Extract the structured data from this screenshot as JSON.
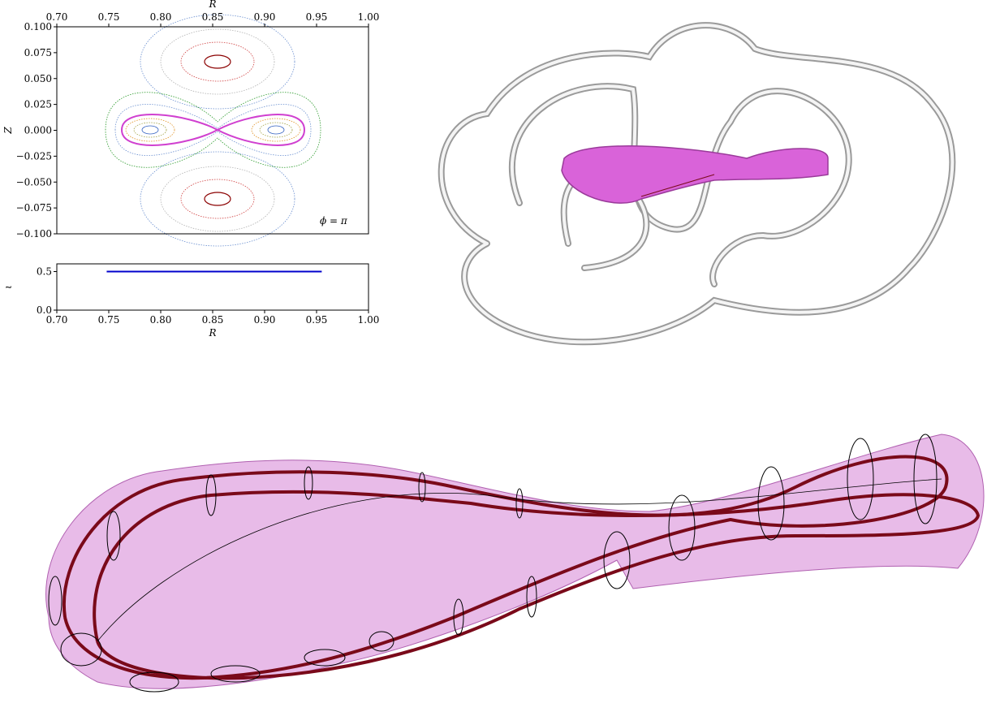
{
  "chart_data": [
    {
      "type": "poincare",
      "xlabel": "R",
      "ylabel": "Z",
      "annotation": "ϕ = π",
      "xlim": [
        0.7,
        1.0
      ],
      "xticks": [
        {
          "value": 0.7,
          "label": "0.70"
        },
        {
          "value": 0.75,
          "label": "0.75"
        },
        {
          "value": 0.8,
          "label": "0.80"
        },
        {
          "value": 0.85,
          "label": "0.85"
        },
        {
          "value": 0.9,
          "label": "0.90"
        },
        {
          "value": 0.95,
          "label": "0.95"
        },
        {
          "value": 1.0,
          "label": "1.00"
        }
      ],
      "ylim": [
        -0.1,
        0.1
      ],
      "yticks": [
        {
          "value": 0.1,
          "label": "0.100"
        },
        {
          "value": 0.075,
          "label": "0.075"
        },
        {
          "value": 0.05,
          "label": "0.050"
        },
        {
          "value": 0.025,
          "label": "0.025"
        },
        {
          "value": 0,
          "label": "0.000"
        },
        {
          "value": -0.025,
          "label": "−0.025"
        },
        {
          "value": -0.05,
          "label": "−0.050"
        },
        {
          "value": -0.075,
          "label": "−0.075"
        },
        {
          "value": -0.1,
          "label": "−0.100"
        }
      ]
    },
    {
      "type": "line",
      "xlabel": "R",
      "ylabel": "ι",
      "x": [
        0.748,
        0.955
      ],
      "series": [
        {
          "color": "#0000cc",
          "values": [
            0.5,
            0.5
          ]
        }
      ],
      "xlim": [
        0.7,
        1.0
      ],
      "xticks": [
        {
          "value": 0.7,
          "label": "0.70"
        },
        {
          "value": 0.75,
          "label": "0.75"
        },
        {
          "value": 0.8,
          "label": "0.80"
        },
        {
          "value": 0.85,
          "label": "0.85"
        },
        {
          "value": 0.9,
          "label": "0.90"
        },
        {
          "value": 0.95,
          "label": "0.95"
        },
        {
          "value": 1.0,
          "label": "1.00"
        }
      ],
      "ylim": [
        0,
        0.6
      ],
      "yticks": [
        {
          "value": 0,
          "label": "0.0"
        },
        {
          "value": 0.5,
          "label": "0.5"
        }
      ]
    }
  ]
}
